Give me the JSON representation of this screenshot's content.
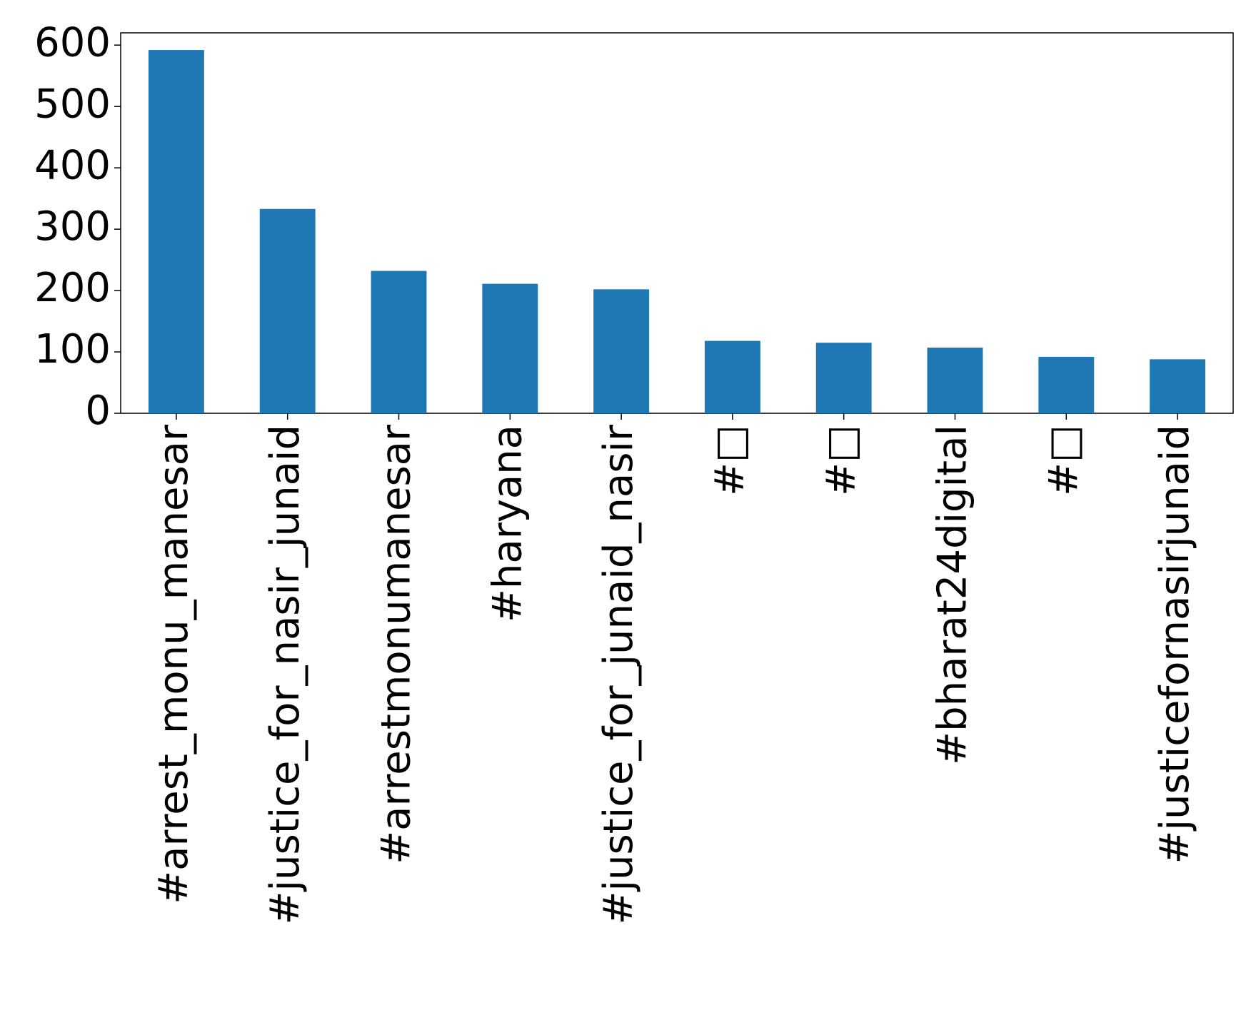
{
  "chart_data": {
    "type": "bar",
    "categories": [
      "#arrest_monu_manesar",
      "#justice_for_nasir_junaid",
      "#arrestmonumanesar",
      "#haryana",
      "#justice_for_junaid_nasir",
      "#□",
      "#□",
      "#bharat24digital",
      "#□",
      "#justicefornasirjunaid"
    ],
    "values": [
      592,
      333,
      232,
      211,
      202,
      118,
      115,
      107,
      92,
      88
    ],
    "color": "#1f77b4",
    "ylim": [
      0,
      620
    ],
    "yticks": [
      0,
      100,
      200,
      300,
      400,
      500,
      600
    ],
    "grid": false
  }
}
